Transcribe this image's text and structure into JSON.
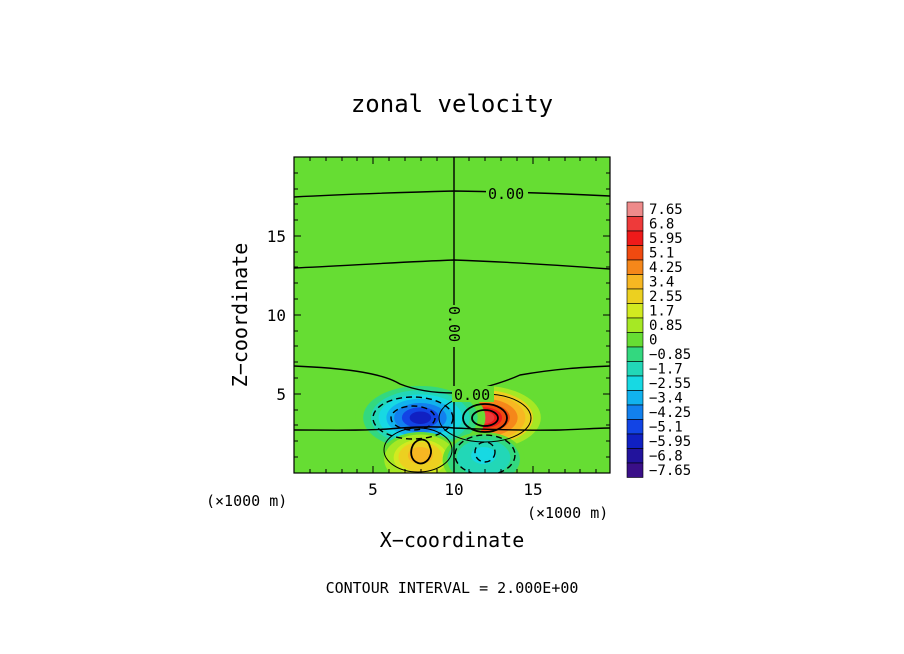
{
  "chart_data": {
    "type": "heatmap",
    "title": "zonal velocity",
    "xlabel": "X−coordinate",
    "ylabel": "Z−coordinate",
    "x_unit_label": "(×1000 m)",
    "z_unit_label": "(×1000 m)",
    "footer": "CONTOUR INTERVAL = 2.000E+00",
    "xlim": [
      0,
      20
    ],
    "ylim": [
      0,
      20
    ],
    "x_ticks": [
      "5",
      "10",
      "15"
    ],
    "y_ticks": [
      "5",
      "10",
      "15"
    ],
    "colorbar": {
      "labels": [
        "7.65",
        "6.8",
        "5.95",
        "5.1",
        "4.25",
        "3.4",
        "2.55",
        "1.7",
        "0.85",
        "0",
        "−0.85",
        "−1.7",
        "−2.55",
        "−3.4",
        "−4.25",
        "−5.1",
        "−5.95",
        "−6.8",
        "−7.65"
      ],
      "colors": [
        "#ee8a8a",
        "#ee3a3a",
        "#ee1a1a",
        "#f04a10",
        "#f5871a",
        "#f7b722",
        "#ecd020",
        "#d2ea20",
        "#a6e824",
        "#66dd33",
        "#33d87f",
        "#22d7b7",
        "#17d9e3",
        "#11b2ee",
        "#1280ee",
        "#1244e5",
        "#1020c2",
        "#22139c",
        "#3a0f88"
      ]
    },
    "background_value": 0.4,
    "contour_labels": [
      "0.00",
      "0.00",
      "0.00"
    ],
    "contour_interval": 2.0,
    "features": [
      {
        "kind": "positive_max",
        "x": 12.0,
        "z": 3.5,
        "peak": 7.5
      },
      {
        "kind": "negative_min",
        "x": 8.0,
        "z": 3.5,
        "peak": -6.6
      },
      {
        "kind": "positive_max",
        "x": 8.0,
        "z": 1.2,
        "peak": 4.3
      },
      {
        "kind": "negative_min",
        "x": 12.0,
        "z": 1.2,
        "peak": -3.3
      }
    ]
  }
}
